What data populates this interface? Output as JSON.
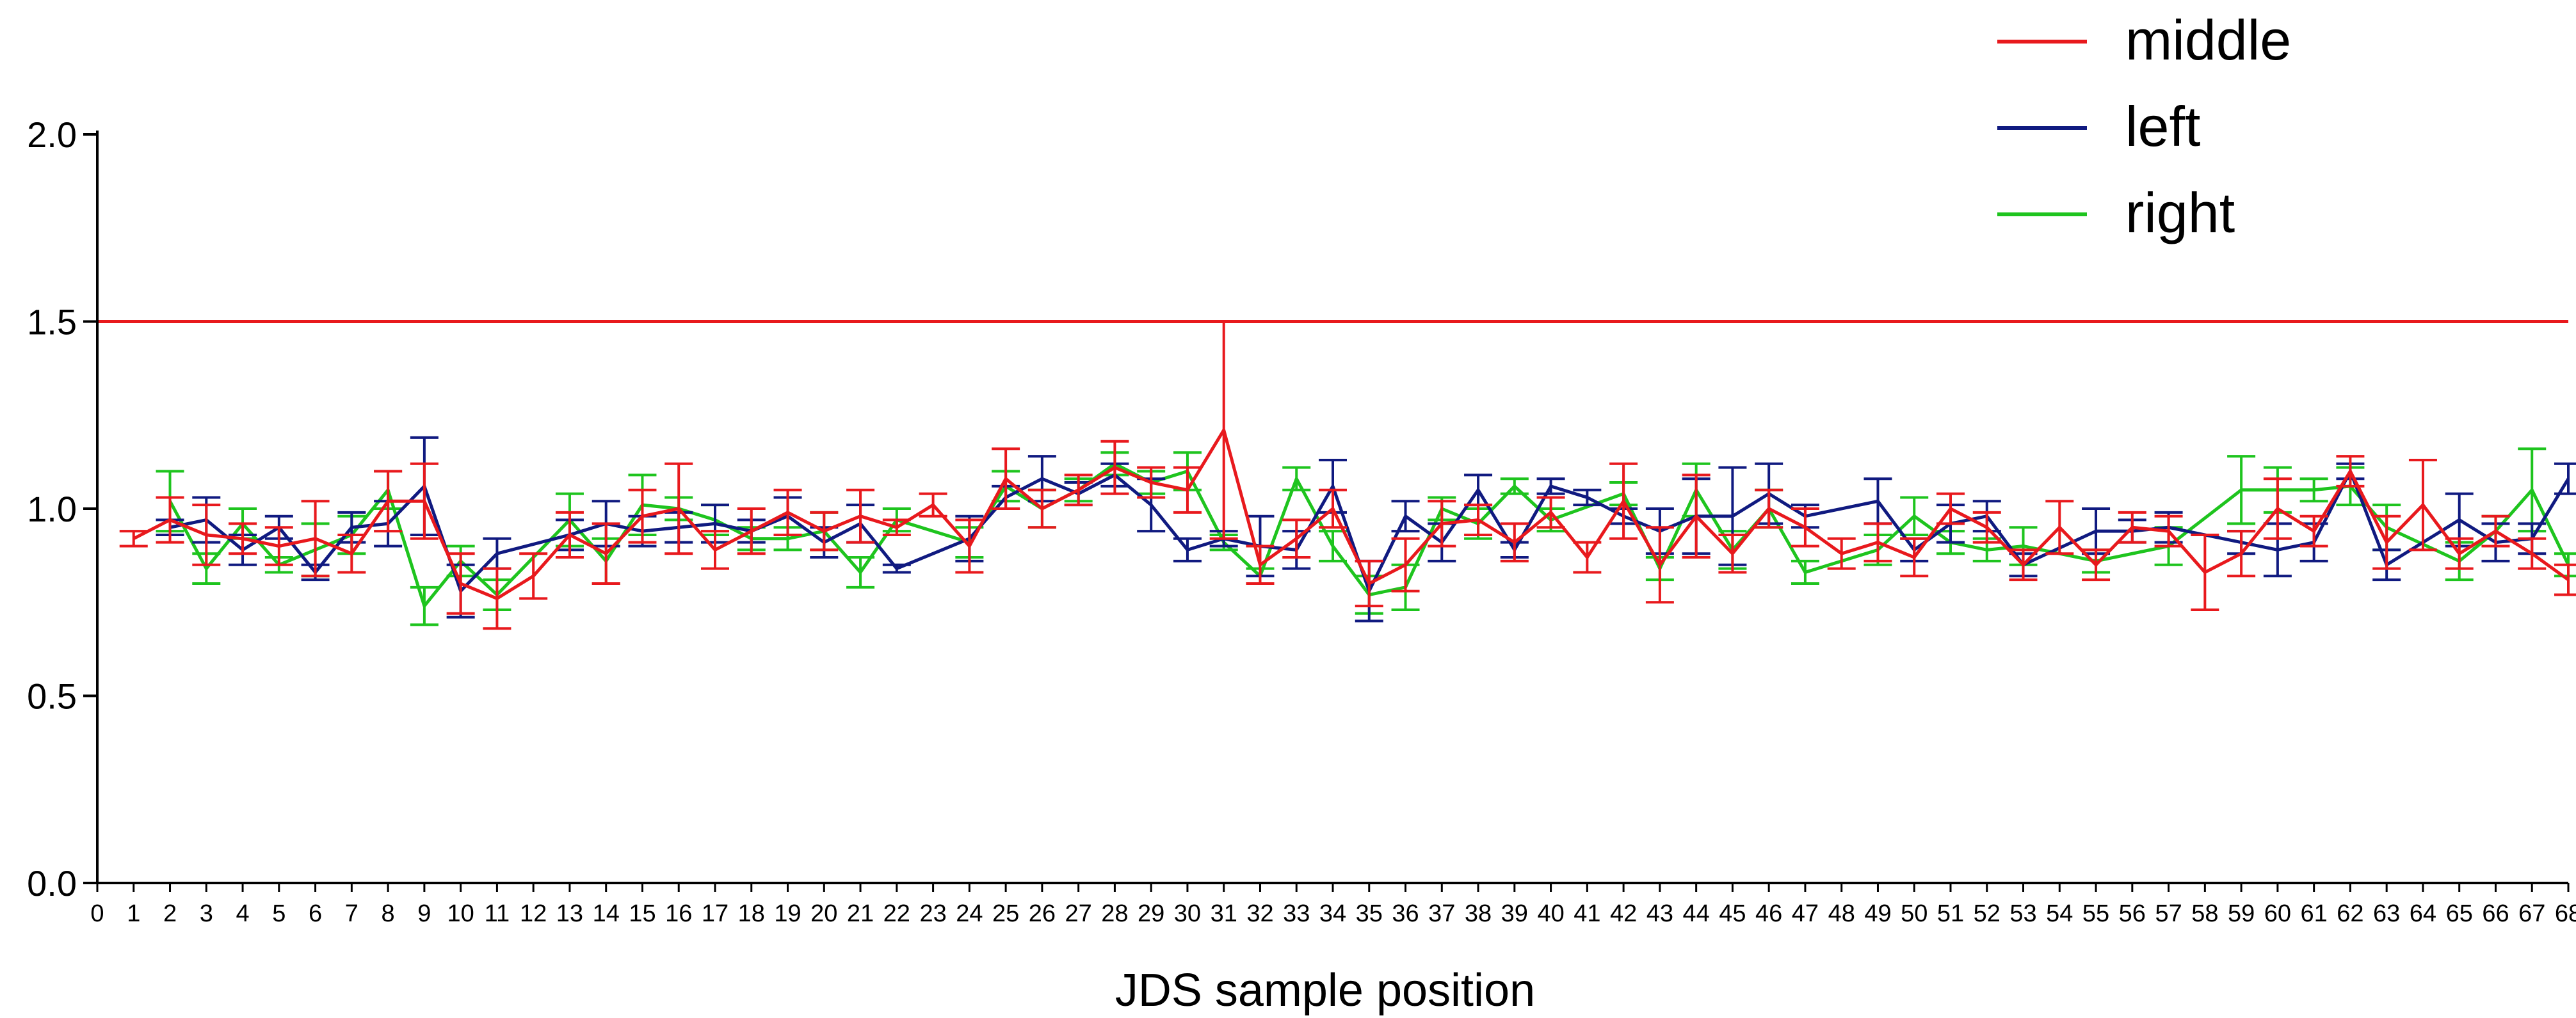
{
  "chart_data": {
    "type": "line",
    "xlabel": "JDS sample position",
    "ylabel": "",
    "xlim": [
      0,
      68
    ],
    "ylim": [
      0,
      2.0
    ],
    "y_ticks": [
      "0.0",
      "0.5",
      "1.0",
      "1.5",
      "2.0"
    ],
    "x_ticks": [
      "0",
      "1",
      "2",
      "3",
      "4",
      "5",
      "6",
      "7",
      "8",
      "9",
      "10",
      "11",
      "12",
      "13",
      "14",
      "15",
      "16",
      "17",
      "18",
      "19",
      "20",
      "21",
      "22",
      "23",
      "24",
      "25",
      "26",
      "27",
      "28",
      "29",
      "30",
      "31",
      "32",
      "33",
      "34",
      "35",
      "36",
      "37",
      "38",
      "39",
      "40",
      "41",
      "42",
      "43",
      "44",
      "45",
      "46",
      "47",
      "48",
      "49",
      "50",
      "51",
      "52",
      "53",
      "54",
      "55",
      "56",
      "57",
      "58",
      "59",
      "60",
      "61",
      "62",
      "63",
      "64",
      "65",
      "66",
      "67",
      "68"
    ],
    "grid": false,
    "legend_position": "top-right",
    "reference_line": {
      "y": 1.5,
      "color": "#e8191d"
    },
    "series": [
      {
        "name": "middle",
        "color": "#e8191d",
        "x": [
          1,
          2,
          3,
          4,
          5,
          6,
          7,
          8,
          9,
          10,
          11,
          12,
          13,
          14,
          15,
          16,
          17,
          18,
          19,
          20,
          21,
          22,
          23,
          24,
          25,
          26,
          27,
          28,
          29,
          30,
          31,
          32,
          33,
          34,
          35,
          36,
          37,
          38,
          39,
          40,
          41,
          42,
          43,
          44,
          45,
          46,
          47,
          48,
          49,
          50,
          51,
          52,
          53,
          54,
          55,
          56,
          57,
          58,
          59,
          60,
          61,
          62,
          63,
          64,
          65,
          66,
          67,
          68
        ],
        "values": [
          0.92,
          0.97,
          0.93,
          0.92,
          0.9,
          0.92,
          0.88,
          1.02,
          1.02,
          0.8,
          0.76,
          0.82,
          0.93,
          0.88,
          0.98,
          1.0,
          0.89,
          0.94,
          0.99,
          0.94,
          0.98,
          0.95,
          1.01,
          0.9,
          1.08,
          1.0,
          1.05,
          1.11,
          1.07,
          1.05,
          1.21,
          0.85,
          0.92,
          1.0,
          0.8,
          0.85,
          0.96,
          0.97,
          0.91,
          0.99,
          0.87,
          1.02,
          0.85,
          0.98,
          0.88,
          1.0,
          0.95,
          0.88,
          0.91,
          0.87,
          1.0,
          0.95,
          0.85,
          0.95,
          0.85,
          0.95,
          0.94,
          0.83,
          0.88,
          1.0,
          0.94,
          1.1,
          0.91,
          1.01,
          0.88,
          0.94,
          0.88,
          0.81
        ],
        "err": [
          0.02,
          0.06,
          0.08,
          0.04,
          0.05,
          0.1,
          0.05,
          0.08,
          0.1,
          0.08,
          0.08,
          0.06,
          0.06,
          0.08,
          0.07,
          0.12,
          0.05,
          0.06,
          0.06,
          0.05,
          0.07,
          0.02,
          0.03,
          0.07,
          0.08,
          0.05,
          0.04,
          0.07,
          0.04,
          0.06,
          0.29,
          0.05,
          0.05,
          0.05,
          0.06,
          0.07,
          0.06,
          0.04,
          0.05,
          0.04,
          0.04,
          0.1,
          0.1,
          0.11,
          0.05,
          0.05,
          0.05,
          0.04,
          0.05,
          0.05,
          0.04,
          0.04,
          0.04,
          0.07,
          0.04,
          0.04,
          0.04,
          0.1,
          0.06,
          0.08,
          0.04,
          0.04,
          0.07,
          0.12,
          0.04,
          0.04,
          0.04,
          0.04
        ]
      },
      {
        "name": "left",
        "color": "#101a80",
        "x": [
          2,
          3,
          4,
          5,
          6,
          7,
          8,
          9,
          10,
          11,
          13,
          14,
          15,
          16,
          17,
          18,
          19,
          20,
          21,
          22,
          24,
          25,
          26,
          27,
          28,
          29,
          30,
          31,
          32,
          33,
          34,
          35,
          36,
          37,
          38,
          39,
          40,
          41,
          42,
          43,
          44,
          45,
          46,
          47,
          49,
          50,
          51,
          52,
          53,
          55,
          56,
          57,
          59,
          60,
          61,
          62,
          63,
          65,
          66,
          67,
          68
        ],
        "values": [
          0.95,
          0.97,
          0.89,
          0.95,
          0.83,
          0.95,
          0.96,
          1.06,
          0.78,
          0.88,
          0.93,
          0.96,
          0.94,
          0.95,
          0.96,
          0.94,
          0.98,
          0.91,
          0.96,
          0.84,
          0.92,
          1.03,
          1.08,
          1.04,
          1.09,
          1.01,
          0.89,
          0.92,
          0.9,
          0.89,
          1.06,
          0.78,
          0.98,
          0.91,
          1.05,
          0.89,
          1.06,
          1.03,
          0.98,
          0.94,
          0.98,
          0.98,
          1.04,
          0.98,
          1.02,
          0.89,
          0.96,
          0.98,
          0.85,
          0.94,
          0.94,
          0.95,
          0.91,
          0.89,
          0.91,
          1.1,
          0.85,
          0.97,
          0.91,
          0.92,
          1.08
        ],
        "err": [
          0.02,
          0.06,
          0.04,
          0.03,
          0.02,
          0.04,
          0.06,
          0.13,
          0.07,
          0.04,
          0.04,
          0.06,
          0.04,
          0.04,
          0.05,
          0.03,
          0.05,
          0.04,
          0.05,
          0.01,
          0.06,
          0.03,
          0.06,
          0.03,
          0.03,
          0.07,
          0.03,
          0.02,
          0.08,
          0.05,
          0.07,
          0.08,
          0.04,
          0.05,
          0.04,
          0.02,
          0.02,
          0.02,
          0.02,
          0.06,
          0.1,
          0.13,
          0.08,
          0.03,
          0.06,
          0.03,
          0.05,
          0.04,
          0.03,
          0.06,
          0.03,
          0.04,
          0.03,
          0.07,
          0.05,
          0.02,
          0.04,
          0.07,
          0.05,
          0.04,
          0.04
        ]
      },
      {
        "name": "right",
        "color": "#1ec41e",
        "x": [
          2,
          3,
          4,
          5,
          6,
          7,
          8,
          9,
          10,
          11,
          13,
          14,
          15,
          16,
          17,
          18,
          19,
          20,
          21,
          22,
          24,
          25,
          26,
          27,
          28,
          29,
          30,
          31,
          32,
          33,
          34,
          35,
          36,
          37,
          38,
          39,
          40,
          42,
          43,
          44,
          45,
          46,
          47,
          49,
          50,
          51,
          52,
          53,
          55,
          57,
          59,
          60,
          61,
          62,
          63,
          65,
          66,
          67,
          68
        ],
        "values": [
          1.02,
          0.84,
          0.96,
          0.85,
          0.89,
          0.93,
          1.05,
          0.74,
          0.86,
          0.77,
          0.97,
          0.86,
          1.01,
          1.0,
          0.97,
          0.92,
          0.92,
          0.94,
          0.83,
          0.97,
          0.91,
          1.06,
          1.0,
          1.05,
          1.12,
          1.07,
          1.1,
          0.91,
          0.82,
          1.08,
          0.9,
          0.77,
          0.79,
          1.0,
          0.96,
          1.06,
          0.97,
          1.04,
          0.84,
          1.05,
          0.89,
          1.0,
          0.83,
          0.89,
          0.98,
          0.91,
          0.89,
          0.9,
          0.86,
          0.9,
          1.05,
          1.05,
          1.05,
          1.06,
          0.95,
          0.86,
          0.94,
          1.05,
          0.85
        ],
        "err": [
          0.08,
          0.04,
          0.04,
          0.02,
          0.07,
          0.05,
          0.05,
          0.05,
          0.04,
          0.04,
          0.07,
          0.06,
          0.08,
          0.03,
          0.04,
          0.03,
          0.03,
          0.05,
          0.04,
          0.03,
          0.04,
          0.04,
          0.05,
          0.03,
          0.03,
          0.03,
          0.05,
          0.02,
          0.02,
          0.03,
          0.04,
          0.05,
          0.06,
          0.03,
          0.04,
          0.02,
          0.03,
          0.03,
          0.03,
          0.07,
          0.05,
          0.05,
          0.03,
          0.04,
          0.05,
          0.03,
          0.03,
          0.05,
          0.03,
          0.05,
          0.09,
          0.06,
          0.03,
          0.05,
          0.06,
          0.05,
          0.04,
          0.11,
          0.03
        ]
      }
    ]
  }
}
